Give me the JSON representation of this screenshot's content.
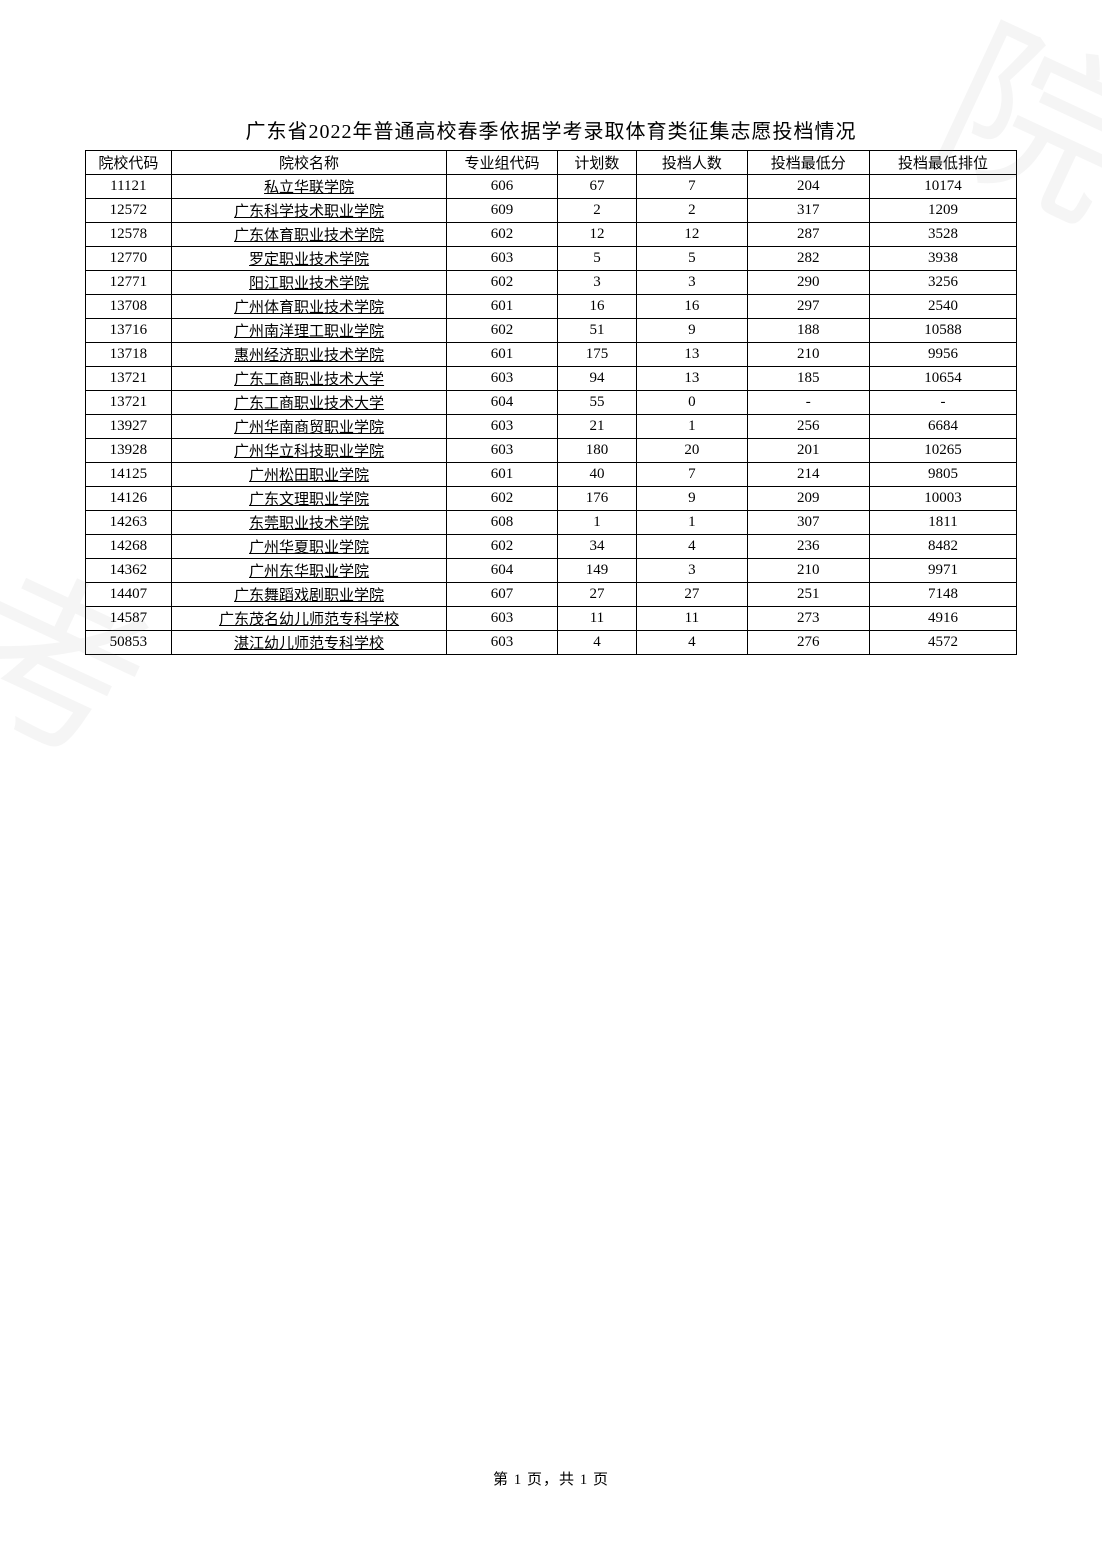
{
  "title": "广东省2022年普通高校春季依据学考录取体育类征集志愿投档情况",
  "footer": "第 1 页，共 1 页",
  "watermark": {
    "top": "院",
    "mid": "考"
  },
  "table": {
    "headers": {
      "code": "院校代码",
      "name": "院校名称",
      "group": "专业组代码",
      "plan": "计划数",
      "admit": "投档人数",
      "score": "投档最低分",
      "rank": "投档最低排位"
    },
    "rows": [
      {
        "code": "11121",
        "name": "私立华联学院",
        "group": "606",
        "plan": "67",
        "admit": "7",
        "score": "204",
        "rank": "10174"
      },
      {
        "code": "12572",
        "name": "广东科学技术职业学院",
        "group": "609",
        "plan": "2",
        "admit": "2",
        "score": "317",
        "rank": "1209"
      },
      {
        "code": "12578",
        "name": "广东体育职业技术学院",
        "group": "602",
        "plan": "12",
        "admit": "12",
        "score": "287",
        "rank": "3528"
      },
      {
        "code": "12770",
        "name": "罗定职业技术学院",
        "group": "603",
        "plan": "5",
        "admit": "5",
        "score": "282",
        "rank": "3938"
      },
      {
        "code": "12771",
        "name": "阳江职业技术学院",
        "group": "602",
        "plan": "3",
        "admit": "3",
        "score": "290",
        "rank": "3256"
      },
      {
        "code": "13708",
        "name": "广州体育职业技术学院",
        "group": "601",
        "plan": "16",
        "admit": "16",
        "score": "297",
        "rank": "2540"
      },
      {
        "code": "13716",
        "name": "广州南洋理工职业学院",
        "group": "602",
        "plan": "51",
        "admit": "9",
        "score": "188",
        "rank": "10588"
      },
      {
        "code": "13718",
        "name": "惠州经济职业技术学院",
        "group": "601",
        "plan": "175",
        "admit": "13",
        "score": "210",
        "rank": "9956"
      },
      {
        "code": "13721",
        "name": "广东工商职业技术大学",
        "group": "603",
        "plan": "94",
        "admit": "13",
        "score": "185",
        "rank": "10654"
      },
      {
        "code": "13721",
        "name": "广东工商职业技术大学",
        "group": "604",
        "plan": "55",
        "admit": "0",
        "score": "-",
        "rank": "-"
      },
      {
        "code": "13927",
        "name": "广州华南商贸职业学院",
        "group": "603",
        "plan": "21",
        "admit": "1",
        "score": "256",
        "rank": "6684"
      },
      {
        "code": "13928",
        "name": "广州华立科技职业学院",
        "group": "603",
        "plan": "180",
        "admit": "20",
        "score": "201",
        "rank": "10265"
      },
      {
        "code": "14125",
        "name": "广州松田职业学院",
        "group": "601",
        "plan": "40",
        "admit": "7",
        "score": "214",
        "rank": "9805"
      },
      {
        "code": "14126",
        "name": "广东文理职业学院",
        "group": "602",
        "plan": "176",
        "admit": "9",
        "score": "209",
        "rank": "10003"
      },
      {
        "code": "14263",
        "name": "东莞职业技术学院",
        "group": "608",
        "plan": "1",
        "admit": "1",
        "score": "307",
        "rank": "1811"
      },
      {
        "code": "14268",
        "name": "广州华夏职业学院",
        "group": "602",
        "plan": "34",
        "admit": "4",
        "score": "236",
        "rank": "8482"
      },
      {
        "code": "14362",
        "name": "广州东华职业学院",
        "group": "604",
        "plan": "149",
        "admit": "3",
        "score": "210",
        "rank": "9971"
      },
      {
        "code": "14407",
        "name": "广东舞蹈戏剧职业学院",
        "group": "607",
        "plan": "27",
        "admit": "27",
        "score": "251",
        "rank": "7148"
      },
      {
        "code": "14587",
        "name": "广东茂名幼儿师范专科学校",
        "group": "603",
        "plan": "11",
        "admit": "11",
        "score": "273",
        "rank": "4916"
      },
      {
        "code": "50853",
        "name": "湛江幼儿师范专科学校",
        "group": "603",
        "plan": "4",
        "admit": "4",
        "score": "276",
        "rank": "4572"
      }
    ]
  }
}
